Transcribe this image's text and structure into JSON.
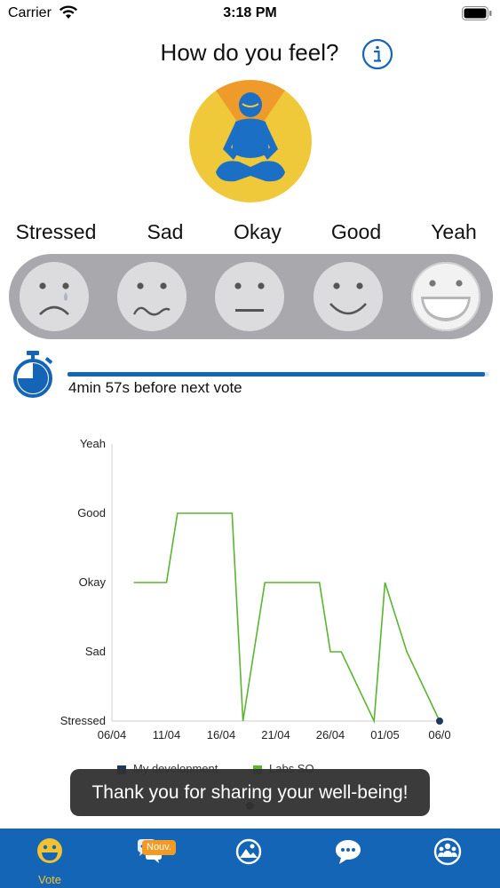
{
  "status_bar": {
    "carrier": "Carrier",
    "time": "3:18 PM"
  },
  "header": {
    "title": "How do you feel?"
  },
  "moods": [
    {
      "label": "Stressed",
      "face": "stressed-face-icon"
    },
    {
      "label": "Sad",
      "face": "sad-face-icon"
    },
    {
      "label": "Okay",
      "face": "neutral-face-icon"
    },
    {
      "label": "Good",
      "face": "smile-face-icon"
    },
    {
      "label": "Yeah",
      "face": "big-smile-face-icon"
    }
  ],
  "selected_mood": "Yeah",
  "timer": {
    "text": "4min 57s before next vote",
    "progress": 0.99
  },
  "colors": {
    "primary": "#1565b7",
    "accent": "#f2c230",
    "series_labs": "#5ab531",
    "series_my": "#1b3a5c",
    "badge": "#f29a23"
  },
  "chart_data": {
    "type": "line",
    "y_categories": [
      "Stressed",
      "Sad",
      "Okay",
      "Good",
      "Yeah"
    ],
    "x_tick_labels": [
      "06/04",
      "11/04",
      "16/04",
      "21/04",
      "26/04",
      "01/05",
      "06/0"
    ],
    "x_start": "2020-04-06",
    "x_end": "2020-05-06",
    "series": [
      {
        "name": "Labs SO",
        "points": [
          [
            "2020-04-08",
            2
          ],
          [
            "2020-04-11",
            2
          ],
          [
            "2020-04-12",
            3
          ],
          [
            "2020-04-17",
            3
          ],
          [
            "2020-04-18",
            0
          ],
          [
            "2020-04-20",
            2
          ],
          [
            "2020-04-25",
            2
          ],
          [
            "2020-04-26",
            1
          ],
          [
            "2020-04-27",
            1
          ],
          [
            "2020-04-30",
            0
          ],
          [
            "2020-05-01",
            2
          ],
          [
            "2020-05-03",
            1
          ],
          [
            "2020-05-06",
            0
          ]
        ]
      },
      {
        "name": "My development",
        "points": [
          [
            "2020-05-06",
            0
          ]
        ]
      }
    ]
  },
  "legend": [
    {
      "name": "My development"
    },
    {
      "name": "Labs SO"
    }
  ],
  "toast": {
    "text": "Thank you for sharing your well-being!"
  },
  "tabs": [
    {
      "label": "Vote",
      "icon": "smiley-icon",
      "active": true
    },
    {
      "label": "",
      "icon": "chat-bubbles-icon",
      "badge": "Nouv."
    },
    {
      "label": "",
      "icon": "mountain-photo-icon"
    },
    {
      "label": "",
      "icon": "speech-bubble-icon"
    },
    {
      "label": "",
      "icon": "group-icon"
    }
  ]
}
